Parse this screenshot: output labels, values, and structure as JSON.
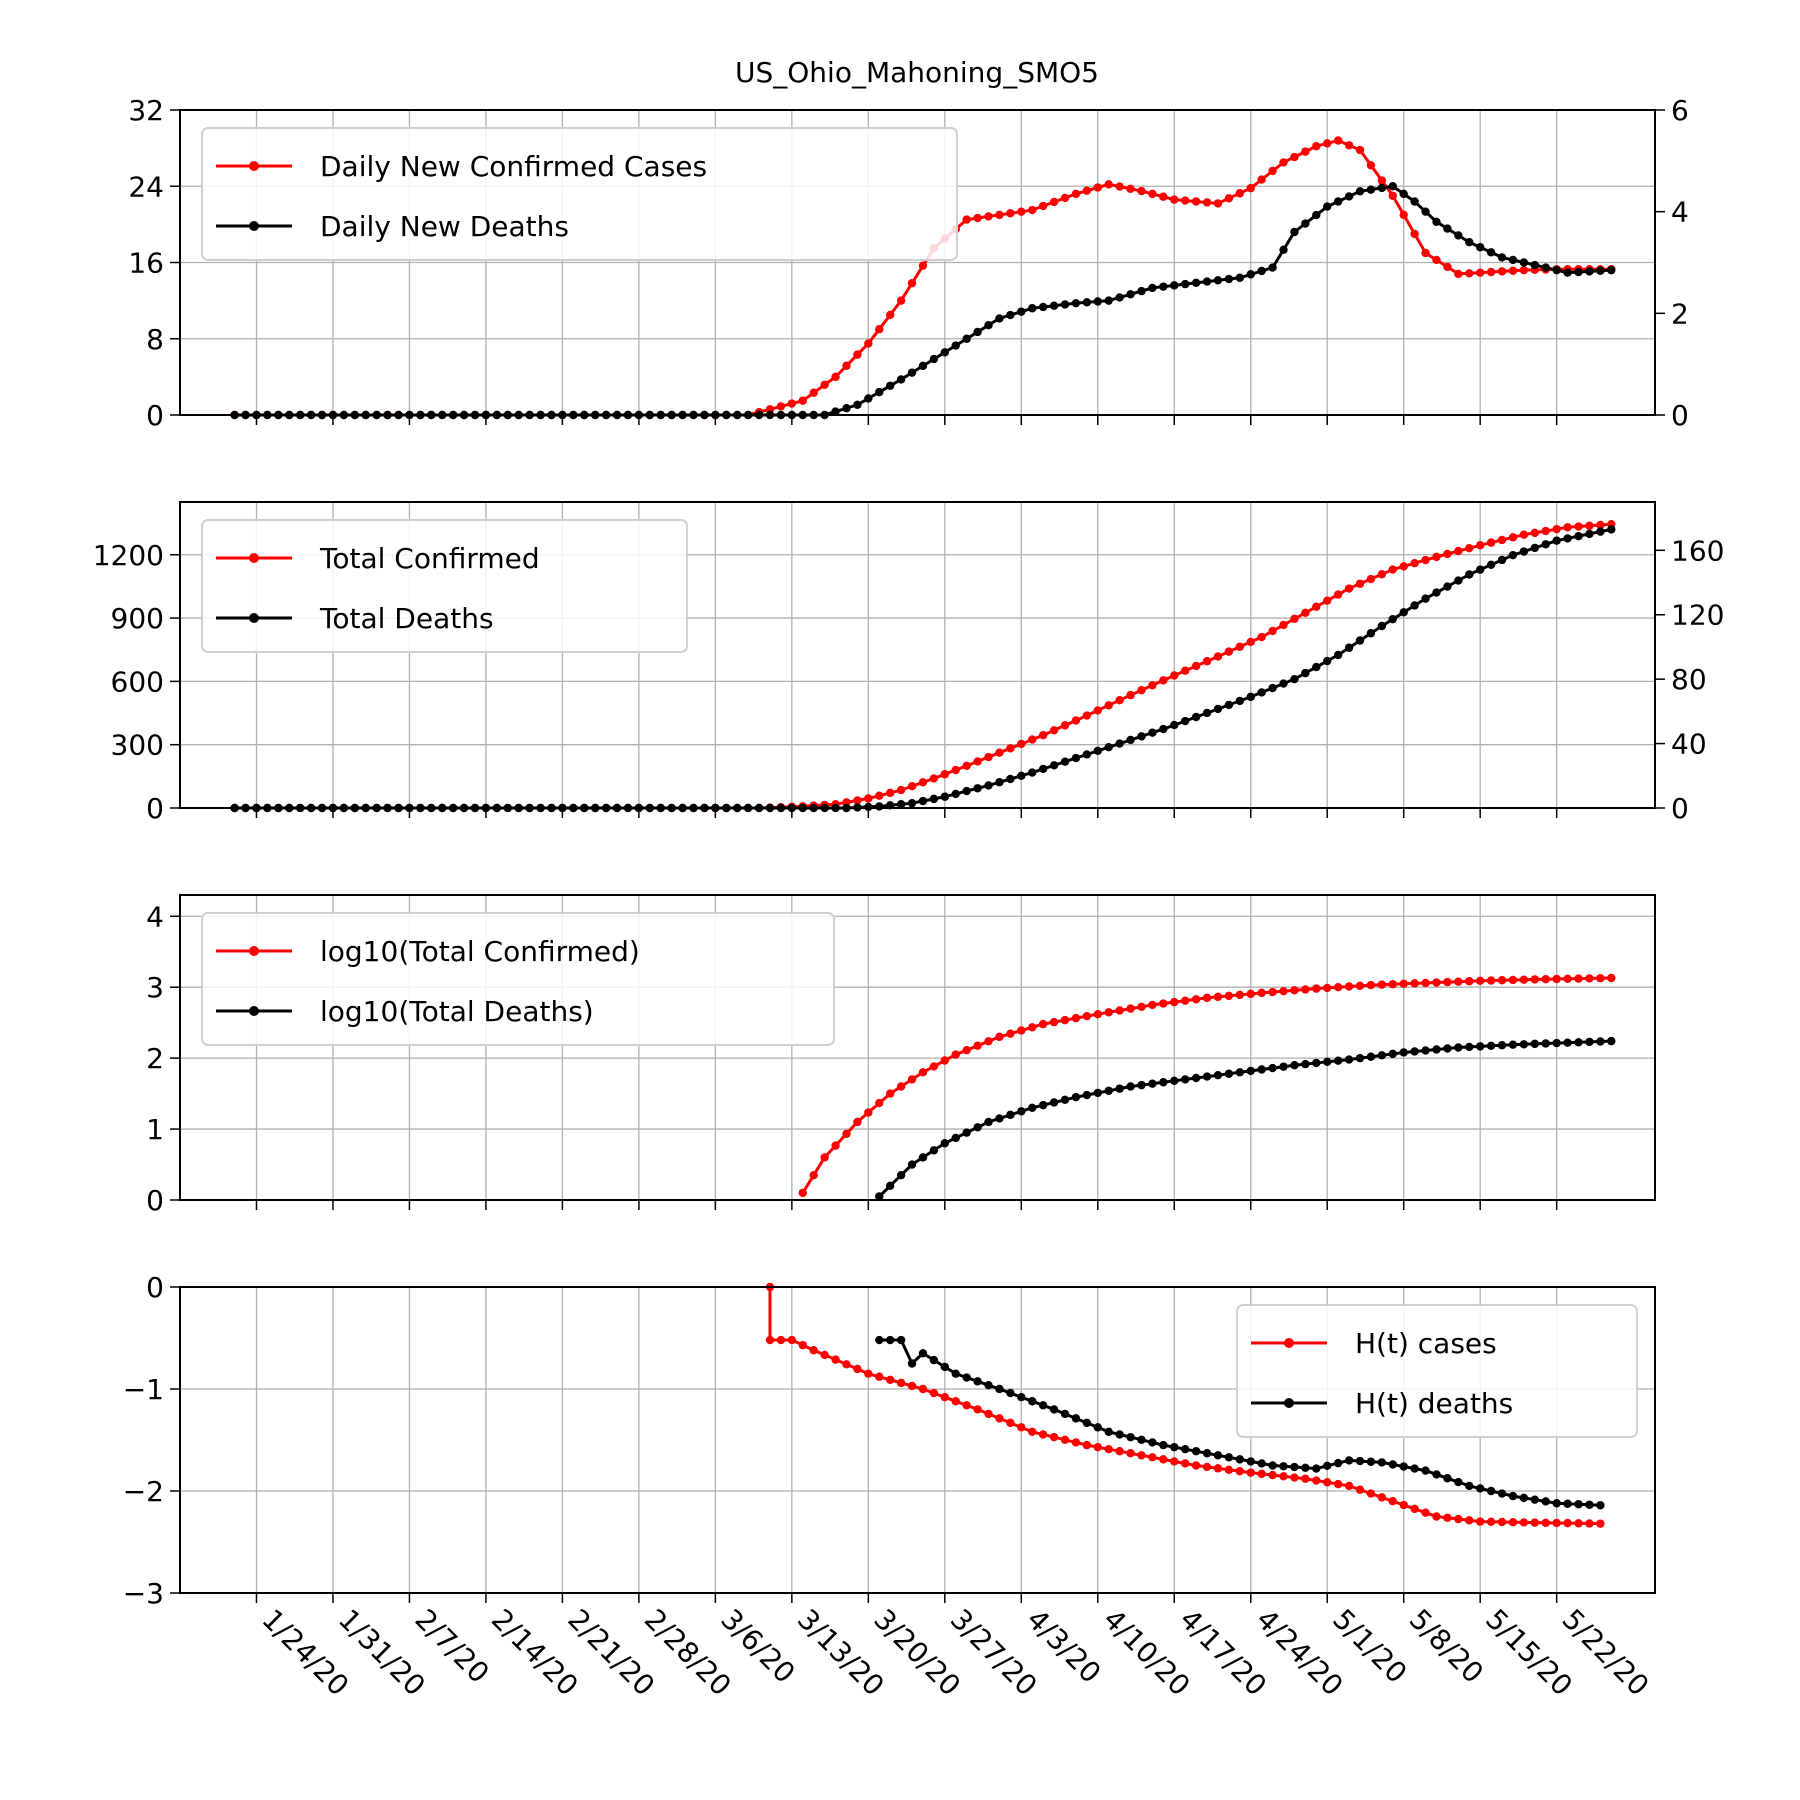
{
  "title": "US_Ohio_Mahoning_SMO5",
  "x_tick_labels": [
    "1/24/20",
    "1/31/20",
    "2/7/20",
    "2/14/20",
    "2/21/20",
    "2/28/20",
    "3/6/20",
    "3/13/20",
    "3/20/20",
    "3/27/20",
    "4/3/20",
    "4/10/20",
    "4/17/20",
    "4/24/20",
    "5/1/20",
    "5/8/20",
    "5/15/20",
    "5/22/20"
  ],
  "colors": {
    "cases": "#ff0000",
    "deaths": "#000000",
    "grid": "#b0b0b0"
  },
  "chart_data": [
    {
      "type": "line",
      "x_dates": [
        "2020-01-22",
        "2020-05-27"
      ],
      "ylim": [
        0,
        32
      ],
      "y_ticks": [
        0,
        8,
        16,
        24,
        32
      ],
      "y2lim": [
        0,
        6
      ],
      "y2_ticks": [
        0,
        2,
        4,
        6
      ],
      "grid": true,
      "legend_position": "upper-left",
      "series": [
        {
          "name": "Daily New Confirmed Cases",
          "axis": "left",
          "color": "#ff0000",
          "points": [
            [
              "2020-01-22",
              0
            ],
            [
              "2020-03-09",
              0
            ],
            [
              "2020-03-14",
              1.5
            ],
            [
              "2020-03-17",
              4
            ],
            [
              "2020-03-20",
              7.5
            ],
            [
              "2020-03-23",
              12
            ],
            [
              "2020-03-26",
              17.5
            ],
            [
              "2020-03-29",
              20.5
            ],
            [
              "2020-04-01",
              21
            ],
            [
              "2020-04-04",
              21.5
            ],
            [
              "2020-04-08",
              23.2
            ],
            [
              "2020-04-11",
              24.2
            ],
            [
              "2020-04-14",
              23.5
            ],
            [
              "2020-04-17",
              22.6
            ],
            [
              "2020-04-21",
              22.2
            ],
            [
              "2020-04-24",
              23.8
            ],
            [
              "2020-04-27",
              26.5
            ],
            [
              "2020-04-30",
              28.2
            ],
            [
              "2020-05-02",
              28.8
            ],
            [
              "2020-05-04",
              27.8
            ],
            [
              "2020-05-07",
              23
            ],
            [
              "2020-05-10",
              17
            ],
            [
              "2020-05-13",
              14.8
            ],
            [
              "2020-05-16",
              15
            ],
            [
              "2020-05-19",
              15.2
            ],
            [
              "2020-05-22",
              15.3
            ],
            [
              "2020-05-27",
              15.3
            ]
          ]
        },
        {
          "name": "Daily New Deaths",
          "axis": "right",
          "color": "#000000",
          "points": [
            [
              "2020-01-22",
              0
            ],
            [
              "2020-03-16",
              0
            ],
            [
              "2020-03-19",
              0.2
            ],
            [
              "2020-03-23",
              0.7
            ],
            [
              "2020-03-26",
              1.1
            ],
            [
              "2020-03-29",
              1.5
            ],
            [
              "2020-04-01",
              1.9
            ],
            [
              "2020-04-04",
              2.1
            ],
            [
              "2020-04-08",
              2.2
            ],
            [
              "2020-04-11",
              2.25
            ],
            [
              "2020-04-15",
              2.5
            ],
            [
              "2020-04-19",
              2.6
            ],
            [
              "2020-04-23",
              2.7
            ],
            [
              "2020-04-26",
              2.9
            ],
            [
              "2020-04-28",
              3.6
            ],
            [
              "2020-05-01",
              4.1
            ],
            [
              "2020-05-04",
              4.4
            ],
            [
              "2020-05-07",
              4.5
            ],
            [
              "2020-05-09",
              4.2
            ],
            [
              "2020-05-11",
              3.8
            ],
            [
              "2020-05-14",
              3.4
            ],
            [
              "2020-05-17",
              3.1
            ],
            [
              "2020-05-20",
              2.95
            ],
            [
              "2020-05-23",
              2.8
            ],
            [
              "2020-05-27",
              2.85
            ]
          ]
        }
      ]
    },
    {
      "type": "line",
      "x_dates": [
        "2020-01-22",
        "2020-05-27"
      ],
      "ylim": [
        0,
        1450
      ],
      "y_ticks": [
        0,
        300,
        600,
        900,
        1200
      ],
      "y2lim": [
        0,
        190
      ],
      "y2_ticks": [
        0,
        40,
        80,
        120,
        160
      ],
      "grid": true,
      "legend_position": "upper-left",
      "series": [
        {
          "name": "Total Confirmed",
          "axis": "left",
          "color": "#ff0000",
          "points": [
            [
              "2020-01-22",
              0
            ],
            [
              "2020-03-10",
              0
            ],
            [
              "2020-03-14",
              8
            ],
            [
              "2020-03-17",
              18
            ],
            [
              "2020-03-20",
              45
            ],
            [
              "2020-03-23",
              85
            ],
            [
              "2020-03-26",
              140
            ],
            [
              "2020-03-29",
              200
            ],
            [
              "2020-04-01",
              262
            ],
            [
              "2020-04-05",
              345
            ],
            [
              "2020-04-09",
              438
            ],
            [
              "2020-04-13",
              535
            ],
            [
              "2020-04-17",
              628
            ],
            [
              "2020-04-21",
              718
            ],
            [
              "2020-04-25",
              810
            ],
            [
              "2020-04-29",
              925
            ],
            [
              "2020-05-03",
              1040
            ],
            [
              "2020-05-07",
              1130
            ],
            [
              "2020-05-11",
              1190
            ],
            [
              "2020-05-15",
              1245
            ],
            [
              "2020-05-19",
              1295
            ],
            [
              "2020-05-23",
              1330
            ],
            [
              "2020-05-27",
              1345
            ]
          ]
        },
        {
          "name": "Total Deaths",
          "axis": "right",
          "color": "#000000",
          "points": [
            [
              "2020-01-22",
              0
            ],
            [
              "2020-03-18",
              0
            ],
            [
              "2020-03-21",
              1
            ],
            [
              "2020-03-24",
              3
            ],
            [
              "2020-03-27",
              7
            ],
            [
              "2020-03-31",
              14
            ],
            [
              "2020-04-04",
              22
            ],
            [
              "2020-04-08",
              31
            ],
            [
              "2020-04-12",
              40
            ],
            [
              "2020-04-16",
              49
            ],
            [
              "2020-04-20",
              59
            ],
            [
              "2020-04-24",
              69
            ],
            [
              "2020-04-28",
              80
            ],
            [
              "2020-05-02",
              95
            ],
            [
              "2020-05-06",
              113
            ],
            [
              "2020-05-10",
              130
            ],
            [
              "2020-05-14",
              145
            ],
            [
              "2020-05-18",
              157
            ],
            [
              "2020-05-22",
              166
            ],
            [
              "2020-05-27",
              173
            ]
          ]
        }
      ]
    },
    {
      "type": "line",
      "x_dates": [
        "2020-01-22",
        "2020-05-27"
      ],
      "ylim": [
        0,
        4.3
      ],
      "y_ticks": [
        0,
        1,
        2,
        3,
        4
      ],
      "grid": true,
      "legend_position": "upper-left",
      "series": [
        {
          "name": "log10(Total Confirmed)",
          "axis": "left",
          "color": "#ff0000",
          "points": [
            [
              "2020-03-14",
              0.1
            ],
            [
              "2020-03-16",
              0.6
            ],
            [
              "2020-03-19",
              1.1
            ],
            [
              "2020-03-22",
              1.5
            ],
            [
              "2020-03-25",
              1.8
            ],
            [
              "2020-03-28",
              2.05
            ],
            [
              "2020-04-01",
              2.3
            ],
            [
              "2020-04-05",
              2.48
            ],
            [
              "2020-04-10",
              2.62
            ],
            [
              "2020-04-15",
              2.75
            ],
            [
              "2020-04-20",
              2.85
            ],
            [
              "2020-04-25",
              2.92
            ],
            [
              "2020-04-30",
              2.98
            ],
            [
              "2020-05-05",
              3.03
            ],
            [
              "2020-05-10",
              3.06
            ],
            [
              "2020-05-15",
              3.09
            ],
            [
              "2020-05-20",
              3.11
            ],
            [
              "2020-05-27",
              3.13
            ]
          ]
        },
        {
          "name": "log10(Total Deaths)",
          "axis": "left",
          "color": "#000000",
          "points": [
            [
              "2020-03-21",
              0.05
            ],
            [
              "2020-03-24",
              0.5
            ],
            [
              "2020-03-27",
              0.8
            ],
            [
              "2020-03-31",
              1.1
            ],
            [
              "2020-04-04",
              1.3
            ],
            [
              "2020-04-08",
              1.45
            ],
            [
              "2020-04-13",
              1.6
            ],
            [
              "2020-04-18",
              1.7
            ],
            [
              "2020-04-23",
              1.8
            ],
            [
              "2020-04-28",
              1.9
            ],
            [
              "2020-05-03",
              1.98
            ],
            [
              "2020-05-08",
              2.08
            ],
            [
              "2020-05-13",
              2.15
            ],
            [
              "2020-05-18",
              2.19
            ],
            [
              "2020-05-27",
              2.24
            ]
          ]
        }
      ]
    },
    {
      "type": "line",
      "x_dates": [
        "2020-01-22",
        "2020-05-27"
      ],
      "ylim": [
        -3,
        0
      ],
      "y_ticks": [
        0,
        -1,
        -2,
        -3
      ],
      "y_tick_labels": [
        "0",
        "−1",
        "−2",
        "−3"
      ],
      "grid": true,
      "legend_position": "upper-right",
      "series": [
        {
          "name": "H(t) cases",
          "axis": "left",
          "color": "#ff0000",
          "points": [
            [
              "2020-03-11",
              0.0
            ],
            [
              "2020-03-11",
              -0.52
            ],
            [
              "2020-03-13",
              -0.52
            ],
            [
              "2020-03-15",
              -0.62
            ],
            [
              "2020-03-20",
              -0.85
            ],
            [
              "2020-03-25",
              -1.0
            ],
            [
              "2020-03-30",
              -1.2
            ],
            [
              "2020-04-04",
              -1.42
            ],
            [
              "2020-04-09",
              -1.55
            ],
            [
              "2020-04-14",
              -1.65
            ],
            [
              "2020-04-19",
              -1.75
            ],
            [
              "2020-04-24",
              -1.82
            ],
            [
              "2020-04-29",
              -1.88
            ],
            [
              "2020-05-03",
              -1.95
            ],
            [
              "2020-05-07",
              -2.1
            ],
            [
              "2020-05-11",
              -2.25
            ],
            [
              "2020-05-15",
              -2.3
            ],
            [
              "2020-05-20",
              -2.31
            ],
            [
              "2020-05-26",
              -2.32
            ]
          ]
        },
        {
          "name": "H(t) deaths",
          "axis": "left",
          "color": "#000000",
          "points": [
            [
              "2020-03-21",
              -0.52
            ],
            [
              "2020-03-23",
              -0.52
            ],
            [
              "2020-03-24",
              -0.75
            ],
            [
              "2020-03-25",
              -0.65
            ],
            [
              "2020-03-28",
              -0.85
            ],
            [
              "2020-04-01",
              -1.0
            ],
            [
              "2020-04-06",
              -1.2
            ],
            [
              "2020-04-11",
              -1.42
            ],
            [
              "2020-04-16",
              -1.55
            ],
            [
              "2020-04-21",
              -1.65
            ],
            [
              "2020-04-26",
              -1.75
            ],
            [
              "2020-04-30",
              -1.78
            ],
            [
              "2020-05-03",
              -1.7
            ],
            [
              "2020-05-06",
              -1.72
            ],
            [
              "2020-05-10",
              -1.8
            ],
            [
              "2020-05-14",
              -1.95
            ],
            [
              "2020-05-18",
              -2.05
            ],
            [
              "2020-05-22",
              -2.12
            ],
            [
              "2020-05-26",
              -2.14
            ]
          ]
        }
      ]
    }
  ]
}
